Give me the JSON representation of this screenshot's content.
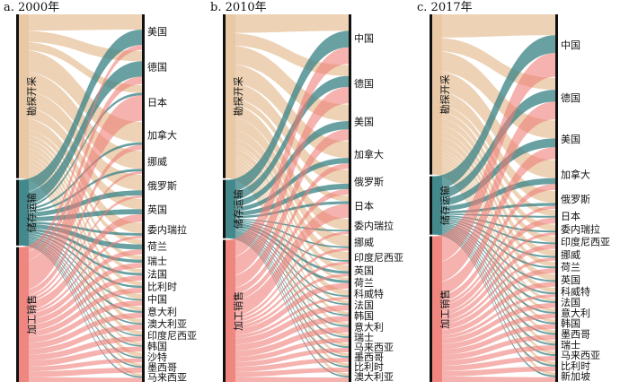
{
  "colors": {
    "upstream": "#e8c7a3",
    "midstream": "#3f8588",
    "downstream": "#ee7e78",
    "bar": "#111111"
  },
  "panels": [
    {
      "title": "a. 2000年",
      "stages": [
        {
          "key": "upstream",
          "label": "勘探开采",
          "value": 45
        },
        {
          "key": "midstream",
          "label": "储存运输",
          "value": 18
        },
        {
          "key": "downstream",
          "label": "加工销售",
          "value": 37
        }
      ],
      "countries": [
        {
          "name": "美国",
          "up": 3.0,
          "mid": 3.0,
          "down": 1.0
        },
        {
          "name": "德国",
          "up": 2.0,
          "mid": 3.0,
          "down": 1.5
        },
        {
          "name": "日本",
          "up": 1.5,
          "mid": 0.5,
          "down": 5.0
        },
        {
          "name": "加拿大",
          "up": 4.0,
          "mid": 0.5,
          "down": 1.0
        },
        {
          "name": "挪威",
          "up": 3.5,
          "mid": 0.5,
          "down": 0.5
        },
        {
          "name": "俄罗斯",
          "up": 3.0,
          "mid": 1.0,
          "down": 0.5
        },
        {
          "name": "英国",
          "up": 2.0,
          "mid": 1.0,
          "down": 1.5
        },
        {
          "name": "委内瑞拉",
          "up": 2.0,
          "mid": 0.5,
          "down": 0.5
        },
        {
          "name": "荷兰",
          "up": 1.0,
          "mid": 1.0,
          "down": 1.0
        },
        {
          "name": "瑞士",
          "up": 0.8,
          "mid": 0.6,
          "down": 1.0
        },
        {
          "name": "法国",
          "up": 0.8,
          "mid": 0.5,
          "down": 1.0
        },
        {
          "name": "比利时",
          "up": 0.8,
          "mid": 0.4,
          "down": 1.0
        },
        {
          "name": "中国",
          "up": 1.0,
          "mid": 0.3,
          "down": 1.0
        },
        {
          "name": "意大利",
          "up": 0.8,
          "mid": 0.4,
          "down": 1.0
        },
        {
          "name": "澳大利亚",
          "up": 0.8,
          "mid": 0.3,
          "down": 1.0
        },
        {
          "name": "印度尼西亚",
          "up": 0.8,
          "mid": 0.3,
          "down": 1.0
        },
        {
          "name": "韩国",
          "up": 0.5,
          "mid": 0.3,
          "down": 1.0
        },
        {
          "name": "沙特",
          "up": 0.8,
          "mid": 0.3,
          "down": 0.8
        },
        {
          "name": "墨西哥",
          "up": 0.5,
          "mid": 0.3,
          "down": 1.0
        },
        {
          "name": "马来西亚",
          "up": 0.5,
          "mid": 0.3,
          "down": 0.8
        }
      ]
    },
    {
      "title": "b. 2010年",
      "stages": [
        {
          "key": "upstream",
          "label": "勘探开采",
          "value": 45
        },
        {
          "key": "midstream",
          "label": "储存运输",
          "value": 16
        },
        {
          "key": "downstream",
          "label": "加工销售",
          "value": 39
        }
      ],
      "countries": [
        {
          "name": "中国",
          "up": 3.0,
          "mid": 3.0,
          "down": 3.0
        },
        {
          "name": "德国",
          "up": 2.0,
          "mid": 2.0,
          "down": 3.0
        },
        {
          "name": "美国",
          "up": 3.0,
          "mid": 1.5,
          "down": 2.0
        },
        {
          "name": "加拿大",
          "up": 3.0,
          "mid": 1.0,
          "down": 1.0
        },
        {
          "name": "俄罗斯",
          "up": 2.5,
          "mid": 1.0,
          "down": 1.0
        },
        {
          "name": "日本",
          "up": 1.0,
          "mid": 0.5,
          "down": 2.5
        },
        {
          "name": "委内瑞拉",
          "up": 2.0,
          "mid": 0.3,
          "down": 0.5
        },
        {
          "name": "挪威",
          "up": 2.0,
          "mid": 0.3,
          "down": 0.5
        },
        {
          "name": "印度尼西亚",
          "up": 1.5,
          "mid": 0.3,
          "down": 0.5
        },
        {
          "name": "英国",
          "up": 1.0,
          "mid": 0.5,
          "down": 0.5
        },
        {
          "name": "荷兰",
          "up": 0.5,
          "mid": 0.5,
          "down": 1.0
        },
        {
          "name": "科威特",
          "up": 1.0,
          "mid": 0.3,
          "down": 0.5
        },
        {
          "name": "法国",
          "up": 0.5,
          "mid": 0.3,
          "down": 1.0
        },
        {
          "name": "韩国",
          "up": 0.5,
          "mid": 0.3,
          "down": 1.0
        },
        {
          "name": "意大利",
          "up": 0.5,
          "mid": 0.3,
          "down": 1.0
        },
        {
          "name": "瑞士",
          "up": 0.5,
          "mid": 0.3,
          "down": 0.8
        },
        {
          "name": "马来西亚",
          "up": 0.5,
          "mid": 0.3,
          "down": 0.8
        },
        {
          "name": "墨西哥",
          "up": 0.5,
          "mid": 0.3,
          "down": 0.8
        },
        {
          "name": "比利时",
          "up": 0.5,
          "mid": 0.3,
          "down": 0.8
        },
        {
          "name": "澳大利亚",
          "up": 0.5,
          "mid": 0.3,
          "down": 0.8
        }
      ]
    },
    {
      "title": "c. 2017年",
      "stages": [
        {
          "key": "upstream",
          "label": "勘探开采",
          "value": 44
        },
        {
          "key": "midstream",
          "label": "储存运输",
          "value": 16
        },
        {
          "key": "downstream",
          "label": "加工销售",
          "value": 40
        }
      ],
      "countries": [
        {
          "name": "中国",
          "up": 3.5,
          "mid": 3.0,
          "down": 4.0
        },
        {
          "name": "德国",
          "up": 2.0,
          "mid": 2.0,
          "down": 3.0
        },
        {
          "name": "美国",
          "up": 3.0,
          "mid": 1.5,
          "down": 2.0
        },
        {
          "name": "加拿大",
          "up": 3.0,
          "mid": 1.0,
          "down": 1.0
        },
        {
          "name": "俄罗斯",
          "up": 2.0,
          "mid": 0.5,
          "down": 0.5
        },
        {
          "name": "日本",
          "up": 1.0,
          "mid": 0.3,
          "down": 1.0
        },
        {
          "name": "委内瑞拉",
          "up": 1.0,
          "mid": 0.3,
          "down": 0.5
        },
        {
          "name": "印度尼西亚",
          "up": 1.0,
          "mid": 0.3,
          "down": 0.8
        },
        {
          "name": "挪威",
          "up": 1.0,
          "mid": 0.3,
          "down": 0.5
        },
        {
          "name": "荷兰",
          "up": 0.8,
          "mid": 0.3,
          "down": 0.8
        },
        {
          "name": "英国",
          "up": 1.0,
          "mid": 0.3,
          "down": 0.8
        },
        {
          "name": "科威特",
          "up": 0.8,
          "mid": 0.3,
          "down": 0.5
        },
        {
          "name": "法国",
          "up": 0.5,
          "mid": 0.3,
          "down": 0.8
        },
        {
          "name": "意大利",
          "up": 0.5,
          "mid": 0.3,
          "down": 0.8
        },
        {
          "name": "韩国",
          "up": 0.5,
          "mid": 0.3,
          "down": 0.8
        },
        {
          "name": "墨西哥",
          "up": 0.5,
          "mid": 0.3,
          "down": 0.8
        },
        {
          "name": "瑞士",
          "up": 0.5,
          "mid": 0.3,
          "down": 0.8
        },
        {
          "name": "马来西亚",
          "up": 0.5,
          "mid": 0.3,
          "down": 0.8
        },
        {
          "name": "比利时",
          "up": 0.5,
          "mid": 0.3,
          "down": 0.8
        },
        {
          "name": "新加坡",
          "up": 0.5,
          "mid": 0.3,
          "down": 0.8
        }
      ]
    }
  ]
}
